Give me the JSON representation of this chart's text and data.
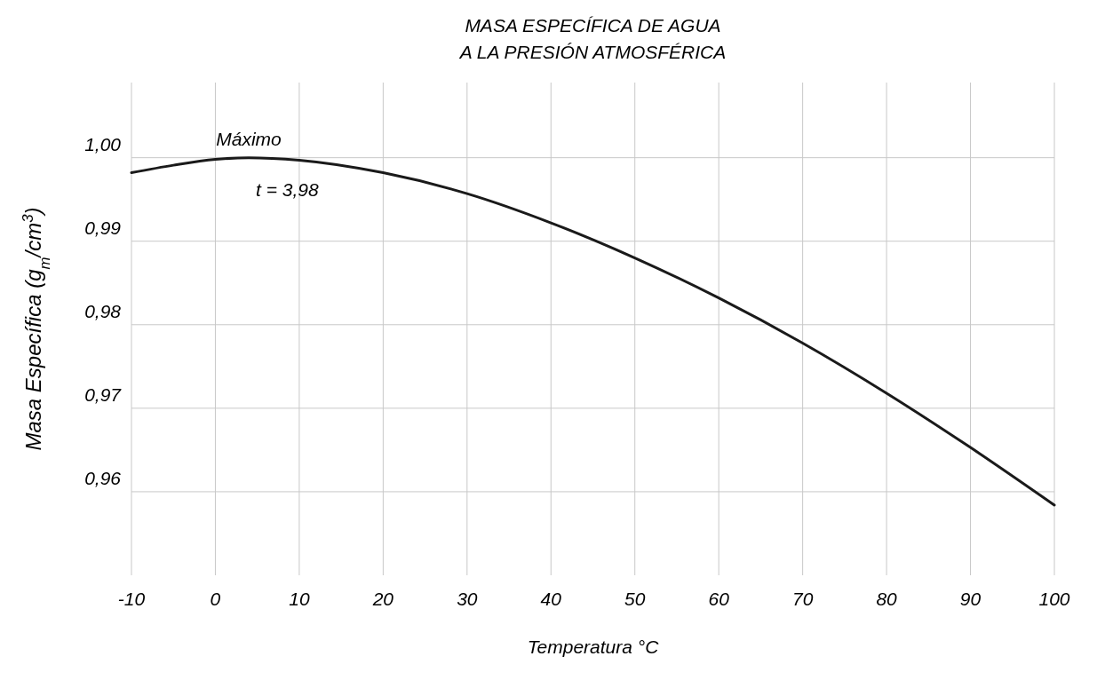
{
  "chart_data": {
    "type": "line",
    "title": "MASA ESPECÍFICA DE AGUA",
    "subtitle": "A LA PRESIÓN ATMOSFÉRICA",
    "xlabel": "Temperatura °C",
    "ylabel": "Masa Específica (g$_{m}$/cm$^{3}$)",
    "series": [
      {
        "color": "#1a1a1a",
        "x": [
          -10,
          -5,
          0,
          3.98,
          10,
          20,
          30,
          40,
          50,
          60,
          70,
          80,
          90,
          100
        ],
        "values": [
          0.9982,
          0.9991,
          0.9998,
          1.0,
          0.9997,
          0.9982,
          0.9957,
          0.9922,
          0.988,
          0.9832,
          0.9778,
          0.9718,
          0.9653,
          0.9584
        ]
      }
    ],
    "xlim": [
      -10,
      100
    ],
    "xticks": [
      -10,
      0,
      10,
      20,
      30,
      40,
      50,
      60,
      70,
      80,
      90,
      100
    ],
    "ylim": [
      0.95,
      1.009
    ],
    "yticks": [
      {
        "value": 0.96,
        "label": "0,96"
      },
      {
        "value": 0.97,
        "label": "0,97"
      },
      {
        "value": 0.98,
        "label": "0,98"
      },
      {
        "value": 0.99,
        "label": "0,99"
      },
      {
        "value": 1.0,
        "label": "1,00"
      }
    ],
    "grid": true,
    "marker": "none",
    "line_style": "solid",
    "annotations": [
      {
        "text": "Máximo",
        "x": 3.98,
        "y": 1.0
      },
      "t = 3,98"
    ]
  }
}
